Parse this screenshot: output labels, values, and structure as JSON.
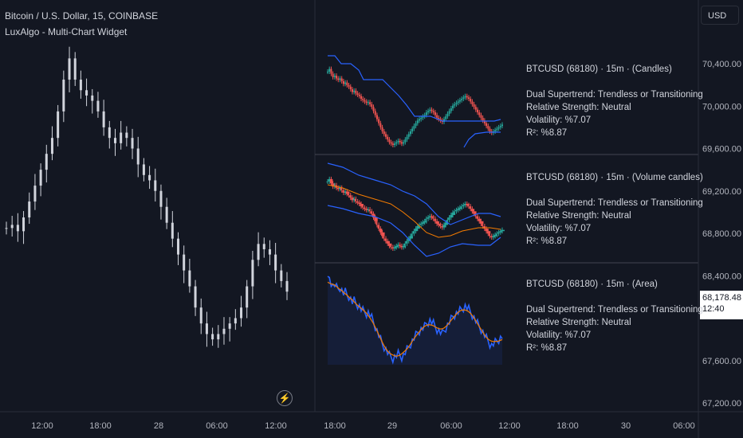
{
  "header": {
    "symbol_title": "Bitcoin / U.S. Dollar, 15, COINBASE",
    "indicator_title": "LuxAlgo - Multi-Chart Widget"
  },
  "currency_button": "USD",
  "last_price": {
    "value": "68,178.48",
    "countdown": "12:40"
  },
  "chart_data": [
    {
      "type": "bar",
      "title": "Bitcoin / U.S. Dollar, 15, COINBASE",
      "xlabel": "",
      "ylabel": "",
      "y_ticks": [
        "70,400.00",
        "70,000.00",
        "69,600.00",
        "69,200.00",
        "68,800.00",
        "68,400.00",
        "67,600.00",
        "67,200.00"
      ],
      "x_ticks": [
        "12:00",
        "18:00",
        "28",
        "06:00",
        "12:00",
        "18:00",
        "29",
        "06:00",
        "12:00",
        "18:00",
        "30",
        "06:00"
      ],
      "ylim": [
        67150,
        70650
      ],
      "approx_closes": [
        68850,
        68880,
        68820,
        68950,
        69100,
        69250,
        69400,
        69550,
        69700,
        69950,
        70250,
        70450,
        70250,
        70150,
        70100,
        70050,
        69950,
        69800,
        69700,
        69650,
        69750,
        69700,
        69600,
        69450,
        69350,
        69300,
        69200,
        69050,
        68900,
        68750,
        68600,
        68450,
        68300,
        68100,
        67950,
        67850,
        67800,
        67850,
        67900,
        67950,
        68000,
        68100,
        68300,
        68550,
        68700,
        68650,
        68600,
        68450,
        68350,
        68250
      ]
    },
    {
      "type": "line",
      "name": "Candles",
      "label": "BTCUSD (68180) · 15m · (Candles)",
      "stats": [
        "Dual Supertrend: Trendless or Transitioning",
        "Relative Strength: Neutral",
        "Volatility: %7.07",
        "R²: %8.87"
      ]
    },
    {
      "type": "line",
      "name": "Volume candles",
      "label": "BTCUSD (68180) · 15m · (Volume candles)",
      "stats": [
        "Dual Supertrend: Trendless or Transitioning",
        "Relative Strength: Neutral",
        "Volatility: %7.07",
        "R²: %8.87"
      ]
    },
    {
      "type": "area",
      "name": "Area",
      "label": "BTCUSD (68180) · 15m · (Area)",
      "stats": [
        "Dual Supertrend: Trendless or Transitioning",
        "Relative Strength: Neutral",
        "Volatility: %7.07",
        "R²: %8.87"
      ]
    }
  ],
  "colors": {
    "bg": "#131722",
    "grid": "#2a2e39",
    "up": "#26a69a",
    "down": "#ef5350",
    "blue": "#2962ff",
    "orange": "#f57c00",
    "white": "#d1d4dc"
  }
}
